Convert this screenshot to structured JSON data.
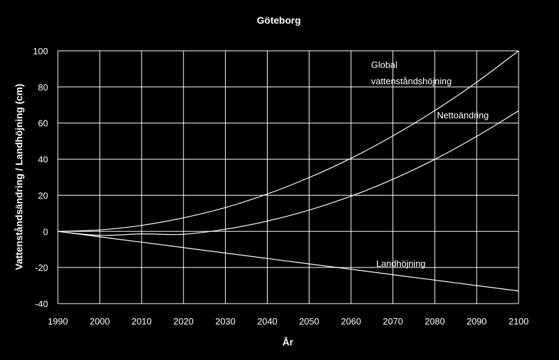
{
  "chart_data": {
    "type": "line",
    "title": "Göteborg",
    "xlabel": "År",
    "ylabel": "Vattenståndsändring / Landhöjning (cm)",
    "xlim": [
      1990,
      2100
    ],
    "ylim": [
      -40,
      100
    ],
    "xticks": [
      1990,
      2000,
      2010,
      2020,
      2030,
      2040,
      2050,
      2060,
      2070,
      2080,
      2090,
      2100
    ],
    "yticks": [
      -40,
      -20,
      0,
      20,
      40,
      60,
      80,
      100
    ],
    "grid": true,
    "legend": "none",
    "x": [
      1990,
      2000,
      2010,
      2020,
      2030,
      2040,
      2050,
      2060,
      2070,
      2080,
      2090,
      2100
    ],
    "series": [
      {
        "name": "Global vattenståndshöjning",
        "label_lines": [
          "Global",
          "vattenståndshöjning"
        ],
        "values": [
          0,
          0.8,
          3.3,
          7.5,
          13.2,
          20.7,
          29.8,
          40.5,
          52.9,
          66.9,
          82.6,
          100
        ]
      },
      {
        "name": "Nettoändring",
        "label_lines": [
          "Nettoändring"
        ],
        "values": [
          0,
          -2.2,
          -1.4,
          -1.6,
          1.2,
          5.7,
          11.8,
          19.5,
          28.9,
          39.9,
          52.6,
          66.8
        ]
      },
      {
        "name": "Landhöjning",
        "label_lines": [
          "Landhöjning"
        ],
        "values": [
          0,
          -3,
          -6,
          -9,
          -12,
          -15,
          -18,
          -21,
          -24,
          -27,
          -30,
          -33
        ]
      }
    ]
  }
}
